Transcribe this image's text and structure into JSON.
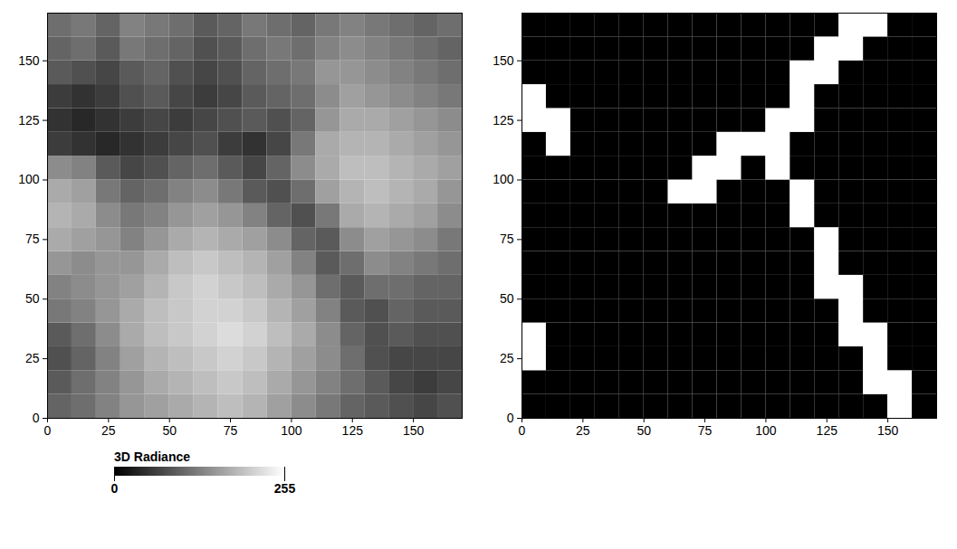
{
  "chart_data": [
    {
      "type": "heatmap",
      "x": [
        0,
        10,
        20,
        30,
        40,
        50,
        60,
        70,
        80,
        90,
        100,
        110,
        120,
        130,
        140,
        150,
        160
      ],
      "y": [
        0,
        10,
        20,
        30,
        40,
        50,
        60,
        70,
        80,
        90,
        100,
        110,
        120,
        130,
        140,
        150,
        160
      ],
      "xlim": [
        0,
        170
      ],
      "ylim": [
        0,
        170
      ],
      "xticks": [
        0,
        25,
        50,
        75,
        100,
        125,
        150
      ],
      "yticks": [
        0,
        25,
        50,
        75,
        100,
        125,
        150
      ],
      "colorbar": {
        "title": "3D Radiance",
        "range": [
          0,
          255
        ],
        "ticks": [
          0,
          255
        ]
      },
      "cells": [
        [
          100,
          110,
          130,
          150,
          160,
          170,
          180,
          190,
          180,
          160,
          140,
          120,
          100,
          90,
          80,
          70,
          80
        ],
        [
          90,
          110,
          130,
          150,
          170,
          180,
          190,
          200,
          190,
          170,
          150,
          130,
          110,
          90,
          70,
          60,
          70
        ],
        [
          80,
          100,
          130,
          160,
          180,
          190,
          200,
          210,
          200,
          180,
          160,
          140,
          110,
          80,
          70,
          70,
          70
        ],
        [
          90,
          110,
          140,
          170,
          190,
          200,
          210,
          220,
          210,
          190,
          170,
          140,
          100,
          80,
          90,
          80,
          80
        ],
        [
          120,
          130,
          150,
          170,
          190,
          200,
          210,
          210,
          200,
          180,
          160,
          130,
          90,
          80,
          100,
          90,
          90
        ],
        [
          130,
          140,
          150,
          160,
          180,
          200,
          210,
          200,
          190,
          170,
          150,
          110,
          90,
          110,
          110,
          100,
          100
        ],
        [
          150,
          140,
          150,
          150,
          170,
          190,
          200,
          190,
          180,
          160,
          130,
          90,
          110,
          140,
          130,
          120,
          110
        ],
        [
          170,
          160,
          150,
          130,
          150,
          170,
          180,
          170,
          160,
          140,
          100,
          90,
          140,
          160,
          150,
          140,
          120
        ],
        [
          180,
          170,
          140,
          120,
          130,
          150,
          160,
          150,
          130,
          100,
          80,
          120,
          170,
          180,
          170,
          160,
          140
        ],
        [
          170,
          160,
          120,
          100,
          110,
          130,
          140,
          120,
          90,
          80,
          110,
          160,
          180,
          190,
          180,
          170,
          150
        ],
        [
          140,
          130,
          90,
          70,
          80,
          100,
          110,
          90,
          70,
          100,
          140,
          170,
          190,
          190,
          180,
          170,
          160
        ],
        [
          60,
          50,
          40,
          50,
          60,
          70,
          80,
          60,
          50,
          70,
          120,
          170,
          180,
          180,
          170,
          160,
          150
        ],
        [
          50,
          40,
          50,
          60,
          70,
          60,
          70,
          80,
          90,
          80,
          100,
          150,
          170,
          170,
          160,
          150,
          140
        ],
        [
          60,
          50,
          60,
          80,
          90,
          70,
          60,
          70,
          90,
          100,
          110,
          140,
          160,
          150,
          140,
          130,
          120
        ],
        [
          90,
          80,
          70,
          90,
          100,
          80,
          70,
          80,
          100,
          110,
          120,
          150,
          150,
          140,
          130,
          120,
          110
        ],
        [
          100,
          110,
          90,
          120,
          110,
          100,
          80,
          90,
          110,
          120,
          110,
          130,
          140,
          130,
          120,
          110,
          100
        ],
        [
          110,
          120,
          100,
          130,
          120,
          110,
          90,
          100,
          120,
          110,
          100,
          120,
          130,
          120,
          110,
          100,
          110
        ]
      ]
    },
    {
      "type": "binary",
      "x": [
        0,
        10,
        20,
        30,
        40,
        50,
        60,
        70,
        80,
        90,
        100,
        110,
        120,
        130,
        140,
        150,
        160
      ],
      "y": [
        0,
        10,
        20,
        30,
        40,
        50,
        60,
        70,
        80,
        90,
        100,
        110,
        120,
        130,
        140,
        150,
        160
      ],
      "xlim": [
        0,
        170
      ],
      "ylim": [
        0,
        170
      ],
      "xticks": [
        0,
        25,
        50,
        75,
        100,
        125,
        150
      ],
      "yticks": [
        0,
        25,
        50,
        75,
        100,
        125,
        150
      ],
      "cells": [
        [
          0,
          0,
          0,
          0,
          0,
          0,
          0,
          0,
          0,
          0,
          0,
          0,
          0,
          0,
          0,
          1,
          0
        ],
        [
          0,
          0,
          0,
          0,
          0,
          0,
          0,
          0,
          0,
          0,
          0,
          0,
          0,
          0,
          1,
          1,
          0
        ],
        [
          1,
          0,
          0,
          0,
          0,
          0,
          0,
          0,
          0,
          0,
          0,
          0,
          0,
          0,
          1,
          0,
          0
        ],
        [
          1,
          0,
          0,
          0,
          0,
          0,
          0,
          0,
          0,
          0,
          0,
          0,
          0,
          1,
          1,
          0,
          0
        ],
        [
          0,
          0,
          0,
          0,
          0,
          0,
          0,
          0,
          0,
          0,
          0,
          0,
          0,
          1,
          0,
          0,
          0
        ],
        [
          0,
          0,
          0,
          0,
          0,
          0,
          0,
          0,
          0,
          0,
          0,
          0,
          1,
          1,
          0,
          0,
          0
        ],
        [
          0,
          0,
          0,
          0,
          0,
          0,
          0,
          0,
          0,
          0,
          0,
          0,
          1,
          0,
          0,
          0,
          0
        ],
        [
          0,
          0,
          0,
          0,
          0,
          0,
          0,
          0,
          0,
          0,
          0,
          0,
          1,
          0,
          0,
          0,
          0
        ],
        [
          0,
          0,
          0,
          0,
          0,
          0,
          0,
          0,
          0,
          0,
          0,
          1,
          0,
          0,
          0,
          0,
          0
        ],
        [
          0,
          0,
          0,
          0,
          0,
          0,
          1,
          1,
          0,
          0,
          0,
          1,
          0,
          0,
          0,
          0,
          0
        ],
        [
          0,
          0,
          0,
          0,
          0,
          0,
          0,
          1,
          1,
          0,
          1,
          0,
          0,
          0,
          0,
          0,
          0
        ],
        [
          0,
          1,
          0,
          0,
          0,
          0,
          0,
          0,
          1,
          1,
          1,
          0,
          0,
          0,
          0,
          0,
          0
        ],
        [
          1,
          1,
          0,
          0,
          0,
          0,
          0,
          0,
          0,
          0,
          1,
          1,
          0,
          0,
          0,
          0,
          0
        ],
        [
          1,
          0,
          0,
          0,
          0,
          0,
          0,
          0,
          0,
          0,
          0,
          1,
          0,
          0,
          0,
          0,
          0
        ],
        [
          0,
          0,
          0,
          0,
          0,
          0,
          0,
          0,
          0,
          0,
          0,
          1,
          1,
          0,
          0,
          0,
          0
        ],
        [
          0,
          0,
          0,
          0,
          0,
          0,
          0,
          0,
          0,
          0,
          0,
          0,
          1,
          1,
          0,
          0,
          0
        ],
        [
          0,
          0,
          0,
          0,
          0,
          0,
          0,
          0,
          0,
          0,
          0,
          0,
          0,
          1,
          1,
          0,
          0
        ]
      ]
    }
  ]
}
